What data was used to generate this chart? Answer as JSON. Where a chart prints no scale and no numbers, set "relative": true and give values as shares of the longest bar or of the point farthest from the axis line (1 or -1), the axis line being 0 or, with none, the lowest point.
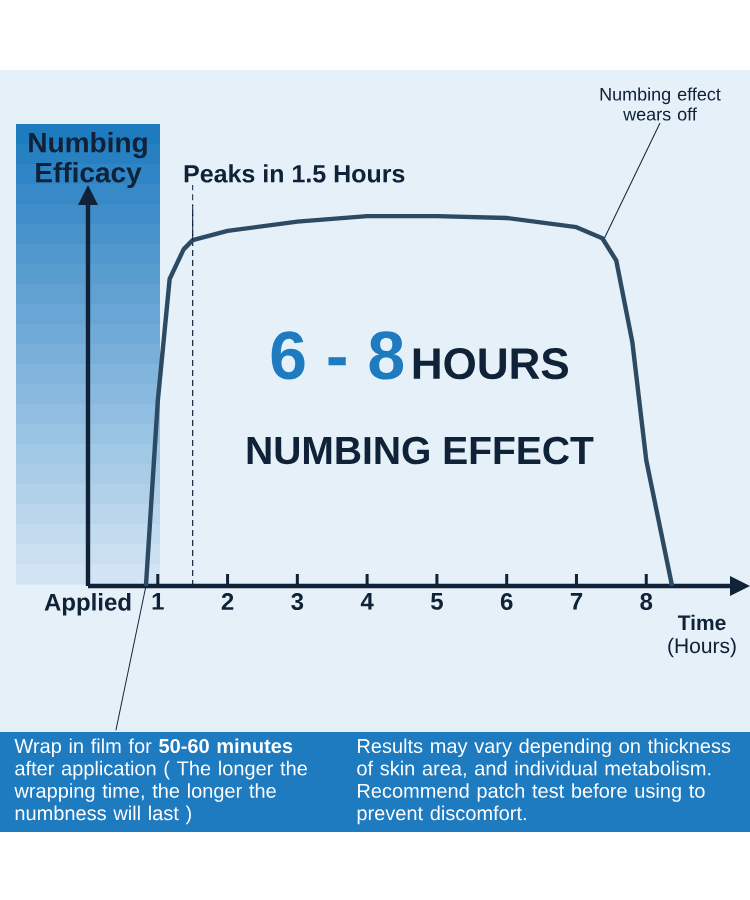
{
  "chart_data": {
    "type": "line",
    "xlabel": "**Time** (Hours)",
    "ylabel": "Numbing Efficacy",
    "relative": true,
    "x": [
      0.83,
      1.0,
      1.17,
      1.37,
      1.5,
      2,
      3,
      4,
      5,
      6,
      7,
      7.37,
      7.57,
      7.8,
      8.0,
      8.37
    ],
    "series": [
      {
        "color": "#2d4a63",
        "values": [
          0,
          0.5,
          0.83,
          0.91,
          0.935,
          0.96,
          0.985,
          1,
          1,
          0.995,
          0.97,
          0.94,
          0.88,
          0.66,
          0.34,
          0
        ]
      }
    ],
    "xlim": [
      0,
      9.2
    ],
    "xticks": [
      {
        "value": 0,
        "label": "Applied"
      },
      1,
      2,
      3,
      4,
      5,
      6,
      7,
      8
    ],
    "ref_lines": [
      {
        "axis": "x",
        "value": 1.5,
        "line_style": "dotted"
      }
    ],
    "annotations": [
      {
        "text": "Peaks in 1.5 Hours",
        "x": 1.5,
        "y": 0.935
      },
      {
        "text": "Numbing effect wears off",
        "x": 7.4,
        "y": 0.94
      },
      "6 - 8",
      "HOURS",
      "NUMBING EFFECT",
      {
        "text": "Wrap in film for **50-60 minutes** after application ( The longer the wrapping time, the longer the numbness will last )",
        "x": 0.83,
        "y": 0
      },
      "Results may vary depending on thickness of skin area, and individual metabolism. Recommend patch test before using to prevent discomfort."
    ]
  }
}
